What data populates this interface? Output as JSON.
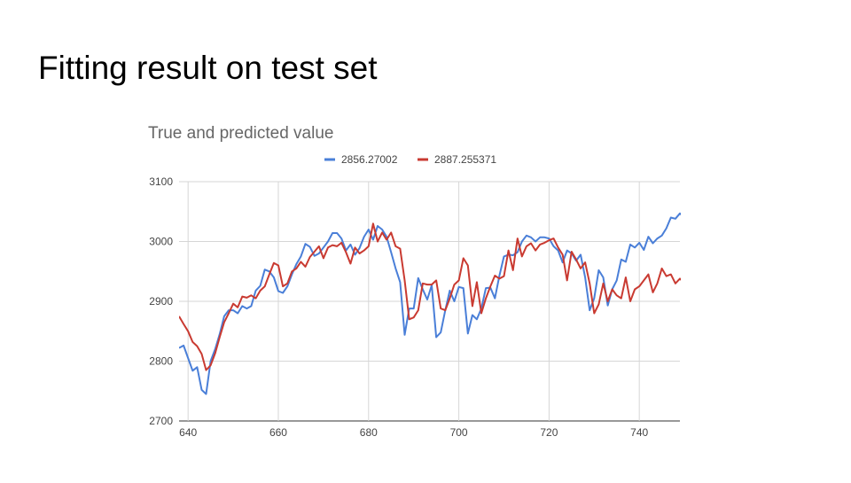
{
  "slide": {
    "title": "Fitting result on test set"
  },
  "chart_data": {
    "type": "line",
    "title": "True and predicted value",
    "xlabel": "",
    "ylabel": "",
    "xlim": [
      638,
      749
    ],
    "ylim": [
      2700,
      3100
    ],
    "xticks": [
      640,
      660,
      680,
      700,
      720,
      740
    ],
    "yticks": [
      2700,
      2800,
      2900,
      3000,
      3100
    ],
    "grid": true,
    "legend_position": "top-center",
    "series": [
      {
        "name": "2856.27002",
        "color": "#4a7fd8",
        "points": [
          [
            638,
            2822
          ],
          [
            639,
            2826
          ],
          [
            640,
            2805
          ],
          [
            641,
            2784
          ],
          [
            642,
            2790
          ],
          [
            643,
            2752
          ],
          [
            644,
            2745
          ],
          [
            645,
            2800
          ],
          [
            646,
            2820
          ],
          [
            647,
            2845
          ],
          [
            648,
            2875
          ],
          [
            649,
            2885
          ],
          [
            650,
            2885
          ],
          [
            651,
            2880
          ],
          [
            652,
            2892
          ],
          [
            653,
            2888
          ],
          [
            654,
            2892
          ],
          [
            655,
            2918
          ],
          [
            656,
            2926
          ],
          [
            657,
            2953
          ],
          [
            658,
            2950
          ],
          [
            659,
            2940
          ],
          [
            660,
            2917
          ],
          [
            661,
            2914
          ],
          [
            662,
            2925
          ],
          [
            663,
            2945
          ],
          [
            664,
            2962
          ],
          [
            665,
            2975
          ],
          [
            666,
            2996
          ],
          [
            667,
            2991
          ],
          [
            668,
            2976
          ],
          [
            669,
            2980
          ],
          [
            670,
            2990
          ],
          [
            671,
            3000
          ],
          [
            672,
            3014
          ],
          [
            673,
            3014
          ],
          [
            674,
            3005
          ],
          [
            675,
            2985
          ],
          [
            676,
            2995
          ],
          [
            677,
            2978
          ],
          [
            678,
            2989
          ],
          [
            679,
            3008
          ],
          [
            680,
            3020
          ],
          [
            681,
            3003
          ],
          [
            682,
            3026
          ],
          [
            683,
            3020
          ],
          [
            684,
            3008
          ],
          [
            685,
            2982
          ],
          [
            686,
            2955
          ],
          [
            687,
            2932
          ],
          [
            688,
            2844
          ],
          [
            689,
            2888
          ],
          [
            690,
            2888
          ],
          [
            691,
            2939
          ],
          [
            692,
            2920
          ],
          [
            693,
            2903
          ],
          [
            694,
            2927
          ],
          [
            695,
            2840
          ],
          [
            696,
            2848
          ],
          [
            697,
            2885
          ],
          [
            698,
            2918
          ],
          [
            699,
            2900
          ],
          [
            700,
            2924
          ],
          [
            701,
            2922
          ],
          [
            702,
            2846
          ],
          [
            703,
            2877
          ],
          [
            704,
            2870
          ],
          [
            705,
            2888
          ],
          [
            706,
            2922
          ],
          [
            707,
            2923
          ],
          [
            708,
            2905
          ],
          [
            709,
            2943
          ],
          [
            710,
            2975
          ],
          [
            711,
            2978
          ],
          [
            712,
            2977
          ],
          [
            713,
            2982
          ],
          [
            714,
            3000
          ],
          [
            715,
            3010
          ],
          [
            716,
            3007
          ],
          [
            717,
            3000
          ],
          [
            718,
            3007
          ],
          [
            719,
            3007
          ],
          [
            720,
            3005
          ],
          [
            721,
            2992
          ],
          [
            722,
            2985
          ],
          [
            723,
            2965
          ],
          [
            724,
            2985
          ],
          [
            725,
            2980
          ],
          [
            726,
            2968
          ],
          [
            727,
            2978
          ],
          [
            728,
            2940
          ],
          [
            729,
            2885
          ],
          [
            730,
            2905
          ],
          [
            731,
            2952
          ],
          [
            732,
            2940
          ],
          [
            733,
            2893
          ],
          [
            734,
            2920
          ],
          [
            735,
            2935
          ],
          [
            736,
            2970
          ],
          [
            737,
            2966
          ],
          [
            738,
            2995
          ],
          [
            739,
            2990
          ],
          [
            740,
            2998
          ],
          [
            741,
            2986
          ],
          [
            742,
            3008
          ],
          [
            743,
            2997
          ],
          [
            744,
            3005
          ],
          [
            745,
            3010
          ],
          [
            746,
            3022
          ],
          [
            747,
            3040
          ],
          [
            748,
            3038
          ],
          [
            749,
            3047
          ],
          [
            750,
            3040
          ]
        ]
      },
      {
        "name": "2887.255371",
        "color": "#c93a31",
        "points": [
          [
            638,
            2875
          ],
          [
            639,
            2862
          ],
          [
            640,
            2850
          ],
          [
            641,
            2832
          ],
          [
            642,
            2825
          ],
          [
            643,
            2812
          ],
          [
            644,
            2785
          ],
          [
            645,
            2793
          ],
          [
            646,
            2813
          ],
          [
            647,
            2840
          ],
          [
            648,
            2865
          ],
          [
            649,
            2880
          ],
          [
            650,
            2896
          ],
          [
            651,
            2890
          ],
          [
            652,
            2908
          ],
          [
            653,
            2906
          ],
          [
            654,
            2910
          ],
          [
            655,
            2905
          ],
          [
            656,
            2918
          ],
          [
            657,
            2925
          ],
          [
            658,
            2945
          ],
          [
            659,
            2964
          ],
          [
            660,
            2960
          ],
          [
            661,
            2925
          ],
          [
            662,
            2930
          ],
          [
            663,
            2950
          ],
          [
            664,
            2955
          ],
          [
            665,
            2966
          ],
          [
            666,
            2958
          ],
          [
            667,
            2974
          ],
          [
            668,
            2983
          ],
          [
            669,
            2992
          ],
          [
            670,
            2972
          ],
          [
            671,
            2990
          ],
          [
            672,
            2994
          ],
          [
            673,
            2992
          ],
          [
            674,
            2998
          ],
          [
            675,
            2982
          ],
          [
            676,
            2963
          ],
          [
            677,
            2990
          ],
          [
            678,
            2980
          ],
          [
            679,
            2985
          ],
          [
            680,
            2992
          ],
          [
            681,
            3030
          ],
          [
            682,
            3000
          ],
          [
            683,
            3015
          ],
          [
            684,
            3003
          ],
          [
            685,
            3015
          ],
          [
            686,
            2992
          ],
          [
            687,
            2988
          ],
          [
            688,
            2935
          ],
          [
            689,
            2870
          ],
          [
            690,
            2873
          ],
          [
            691,
            2885
          ],
          [
            692,
            2930
          ],
          [
            693,
            2928
          ],
          [
            694,
            2928
          ],
          [
            695,
            2935
          ],
          [
            696,
            2888
          ],
          [
            697,
            2885
          ],
          [
            698,
            2905
          ],
          [
            699,
            2928
          ],
          [
            700,
            2935
          ],
          [
            701,
            2972
          ],
          [
            702,
            2960
          ],
          [
            703,
            2892
          ],
          [
            704,
            2932
          ],
          [
            705,
            2880
          ],
          [
            706,
            2905
          ],
          [
            707,
            2925
          ],
          [
            708,
            2943
          ],
          [
            709,
            2938
          ],
          [
            710,
            2942
          ],
          [
            711,
            2985
          ],
          [
            712,
            2952
          ],
          [
            713,
            3005
          ],
          [
            714,
            2975
          ],
          [
            715,
            2992
          ],
          [
            716,
            2997
          ],
          [
            717,
            2985
          ],
          [
            718,
            2995
          ],
          [
            719,
            2998
          ],
          [
            720,
            3002
          ],
          [
            721,
            3005
          ],
          [
            722,
            2990
          ],
          [
            723,
            2978
          ],
          [
            724,
            2935
          ],
          [
            725,
            2983
          ],
          [
            726,
            2970
          ],
          [
            727,
            2955
          ],
          [
            728,
            2965
          ],
          [
            729,
            2930
          ],
          [
            730,
            2880
          ],
          [
            731,
            2895
          ],
          [
            732,
            2930
          ],
          [
            733,
            2900
          ],
          [
            734,
            2920
          ],
          [
            735,
            2910
          ],
          [
            736,
            2905
          ],
          [
            737,
            2940
          ],
          [
            738,
            2900
          ],
          [
            739,
            2920
          ],
          [
            740,
            2925
          ],
          [
            741,
            2935
          ],
          [
            742,
            2945
          ],
          [
            743,
            2915
          ],
          [
            744,
            2930
          ],
          [
            745,
            2955
          ],
          [
            746,
            2942
          ],
          [
            747,
            2945
          ],
          [
            748,
            2930
          ],
          [
            749,
            2938
          ],
          [
            750,
            2930
          ]
        ]
      }
    ]
  }
}
